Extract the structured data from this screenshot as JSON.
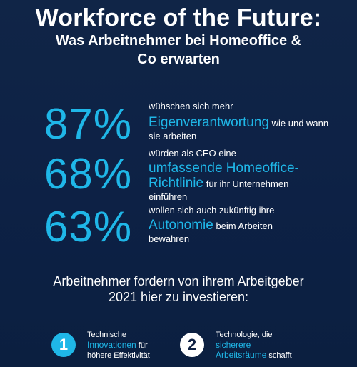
{
  "header": {
    "title": "Workforce of the Future:",
    "subtitle_line1": "Was Arbeitnehmer bei Homeoffice &",
    "subtitle_line2": "Co erwarten"
  },
  "stats": [
    {
      "value": "87%",
      "pre": "wühschen sich mehr",
      "highlight": "Eigenverantwortung",
      "post_line1": " wie und wann",
      "post_line2": "sie arbeiten"
    },
    {
      "value": "68%",
      "pre": "würden als CEO eine",
      "highlight_line1": "umfassende Homeoffice-",
      "highlight_line2": "Richtlinie",
      "post_line1": " für ihr Unternehmen",
      "post_line2": "einführen"
    },
    {
      "value": "63%",
      "pre": "wollen sich auch zukünftig ihre",
      "highlight": "Autonomie",
      "post_line1": " beim Arbeiten",
      "post_line2": "bewahren"
    }
  ],
  "investment": {
    "heading_line1": "Arbeitnehmer fordern von ihrem Arbeitgeber",
    "heading_line2": "2021 hier zu investieren:",
    "items": [
      {
        "number": "1",
        "line1": "Technische",
        "highlight": "Innovationen",
        "after_highlight": " für",
        "line3": "höhere Effektivität"
      },
      {
        "number": "2",
        "line1": "Technologie, die",
        "highlight": "sicherere",
        "highlight2": "Arbeitsräume",
        "after_highlight": " schafft"
      }
    ]
  },
  "colors": {
    "background": "#0f2244",
    "accent": "#1fb7e8",
    "text": "#ffffff"
  }
}
